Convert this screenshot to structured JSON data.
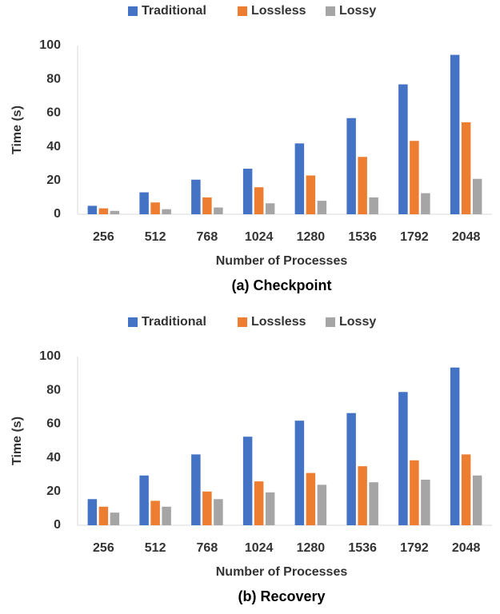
{
  "chart_data": [
    {
      "type": "bar",
      "caption": "(a) Checkpoint",
      "xlabel": "Number of Processes",
      "ylabel": "Time (s)",
      "categories": [
        "256",
        "512",
        "768",
        "1024",
        "1280",
        "1536",
        "1792",
        "2048"
      ],
      "series": [
        {
          "name": "Traditional",
          "color": "#4472c4",
          "values": [
            5,
            13,
            20.5,
            27,
            42,
            57,
            77,
            94.5
          ]
        },
        {
          "name": "Lossless",
          "color": "#ed7d31",
          "values": [
            3.5,
            7,
            10,
            16,
            23,
            34,
            43.5,
            54.5
          ]
        },
        {
          "name": "Lossy",
          "color": "#a5a5a5",
          "values": [
            2,
            3,
            4,
            6.5,
            8,
            10,
            12.5,
            21
          ]
        }
      ],
      "ylim": [
        0,
        100
      ],
      "yticks": [
        0,
        20,
        40,
        60,
        80,
        100
      ],
      "grid": false,
      "legend": "top"
    },
    {
      "type": "bar",
      "caption": "(b) Recovery",
      "xlabel": "Number of Processes",
      "ylabel": "Time (s)",
      "categories": [
        "256",
        "512",
        "768",
        "1024",
        "1280",
        "1536",
        "1792",
        "2048"
      ],
      "series": [
        {
          "name": "Traditional",
          "color": "#4472c4",
          "values": [
            15.5,
            29.5,
            42,
            52.5,
            62,
            66.5,
            79,
            93.5
          ]
        },
        {
          "name": "Lossless",
          "color": "#ed7d31",
          "values": [
            11,
            14.5,
            20,
            26,
            31,
            35,
            38.5,
            42
          ]
        },
        {
          "name": "Lossy",
          "color": "#a5a5a5",
          "values": [
            7.5,
            11,
            15.5,
            19.5,
            24,
            25.5,
            27,
            29.5
          ]
        }
      ],
      "ylim": [
        0,
        100
      ],
      "yticks": [
        0,
        20,
        40,
        60,
        80,
        100
      ],
      "grid": false,
      "legend": "top"
    }
  ]
}
